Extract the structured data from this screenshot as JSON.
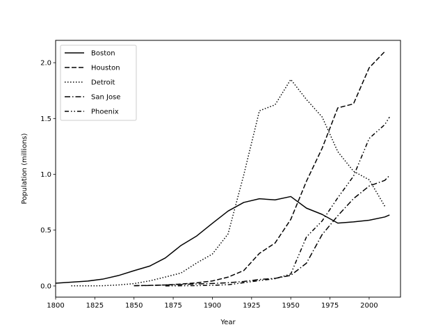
{
  "chart_data": {
    "type": "line",
    "xlabel": "Year",
    "ylabel": "Population (millions)",
    "xlim": [
      1800,
      2020
    ],
    "ylim": [
      -0.1,
      2.2
    ],
    "x_ticks": [
      1800,
      1825,
      1850,
      1875,
      1900,
      1925,
      1950,
      1975,
      2000
    ],
    "x_tick_labels": [
      "1800",
      "1825",
      "1850",
      "1875",
      "1900",
      "1925",
      "1950",
      "1975",
      "2000"
    ],
    "y_ticks": [
      0.0,
      0.5,
      1.0,
      1.5,
      2.0
    ],
    "y_tick_labels": [
      "0.0",
      "0.5",
      "1.0",
      "1.5",
      "2.0"
    ],
    "grid": false,
    "legend_position": "top-left",
    "series": [
      {
        "name": "Boston",
        "dash": "solid",
        "color": "#000000",
        "x": [
          1800,
          1810,
          1820,
          1830,
          1840,
          1850,
          1860,
          1870,
          1880,
          1890,
          1900,
          1910,
          1920,
          1930,
          1940,
          1950,
          1960,
          1970,
          1980,
          1990,
          2000,
          2010,
          2013
        ],
        "values": [
          0.025,
          0.034,
          0.043,
          0.061,
          0.093,
          0.137,
          0.178,
          0.251,
          0.363,
          0.448,
          0.561,
          0.671,
          0.748,
          0.781,
          0.771,
          0.801,
          0.697,
          0.641,
          0.563,
          0.574,
          0.589,
          0.618,
          0.636
        ]
      },
      {
        "name": "Houston",
        "dash": "dashed",
        "color": "#000000",
        "x": [
          1850,
          1860,
          1870,
          1880,
          1890,
          1900,
          1910,
          1920,
          1930,
          1940,
          1950,
          1960,
          1970,
          1980,
          1990,
          2000,
          2010
        ],
        "values": [
          0.002,
          0.005,
          0.009,
          0.017,
          0.028,
          0.045,
          0.079,
          0.138,
          0.292,
          0.385,
          0.596,
          0.938,
          1.233,
          1.595,
          1.631,
          1.954,
          2.1
        ]
      },
      {
        "name": "Detroit",
        "dash": "dotted",
        "color": "#000000",
        "x": [
          1810,
          1820,
          1830,
          1840,
          1850,
          1860,
          1870,
          1880,
          1890,
          1900,
          1910,
          1920,
          1930,
          1940,
          1950,
          1960,
          1970,
          1980,
          1990,
          2000,
          2010
        ],
        "values": [
          0.001,
          0.001,
          0.002,
          0.009,
          0.021,
          0.046,
          0.08,
          0.116,
          0.206,
          0.286,
          0.466,
          0.994,
          1.569,
          1.623,
          1.85,
          1.67,
          1.514,
          1.203,
          1.028,
          0.951,
          0.714
        ]
      },
      {
        "name": "San Jose",
        "dash": "dashdot",
        "color": "#000000",
        "x": [
          1850,
          1860,
          1870,
          1880,
          1890,
          1900,
          1910,
          1920,
          1930,
          1940,
          1950,
          1960,
          1970,
          1980,
          1990,
          2000,
          2010,
          2013
        ],
        "values": [
          0.003,
          0.004,
          0.009,
          0.013,
          0.018,
          0.022,
          0.029,
          0.04,
          0.058,
          0.068,
          0.095,
          0.204,
          0.46,
          0.629,
          0.782,
          0.895,
          0.946,
          0.99
        ]
      },
      {
        "name": "Phoenix",
        "dash": "dashdotdot",
        "color": "#000000",
        "x": [
          1870,
          1880,
          1890,
          1900,
          1910,
          1920,
          1930,
          1940,
          1950,
          1960,
          1970,
          1980,
          1990,
          2000,
          2010,
          2013
        ],
        "values": [
          0.0003,
          0.002,
          0.003,
          0.006,
          0.011,
          0.029,
          0.048,
          0.065,
          0.107,
          0.439,
          0.582,
          0.79,
          0.983,
          1.321,
          1.446,
          1.513
        ]
      }
    ]
  }
}
